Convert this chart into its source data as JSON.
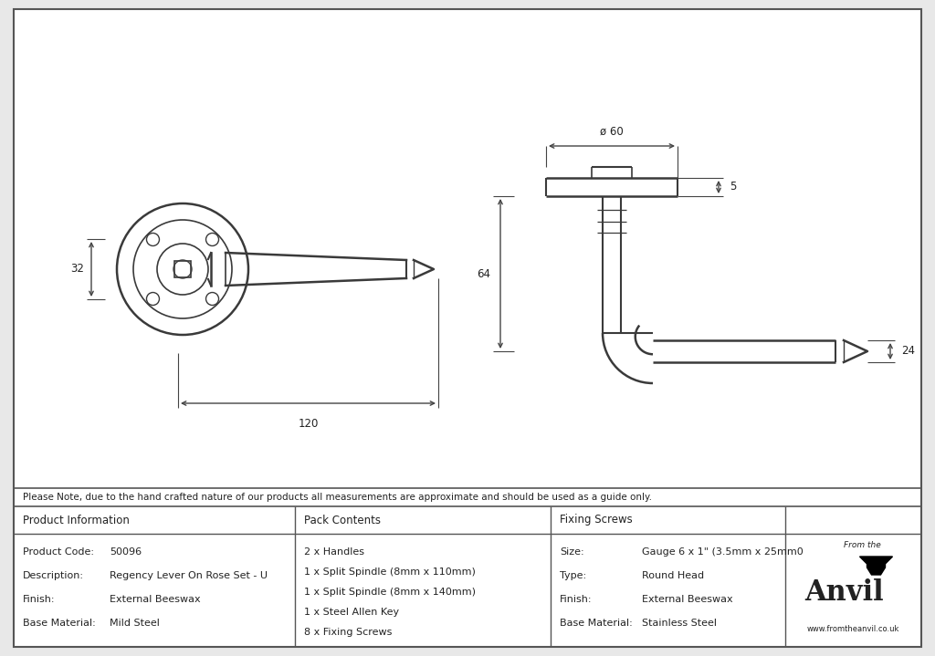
{
  "bg_color": "#e8e8e8",
  "drawing_bg": "#ffffff",
  "border_color": "#555555",
  "line_color": "#3a3a3a",
  "dim_color": "#444444",
  "text_color": "#222222",
  "note_text": "Please Note, due to the hand crafted nature of our products all measurements are approximate and should be used as a guide only.",
  "table": {
    "col1_header": "Product Information",
    "col2_header": "Pack Contents",
    "col3_header": "Fixing Screws",
    "col1_rows": [
      [
        "Product Code:",
        "50096"
      ],
      [
        "Description:",
        "Regency Lever On Rose Set - U"
      ],
      [
        "Finish:",
        "External Beeswax"
      ],
      [
        "Base Material:",
        "Mild Steel"
      ]
    ],
    "col2_rows": [
      "2 x Handles",
      "1 x Split Spindle (8mm x 110mm)",
      "1 x Split Spindle (8mm x 140mm)",
      "1 x Steel Allen Key",
      "8 x Fixing Screws"
    ],
    "col3_rows": [
      [
        "Size:",
        "Gauge 6 x 1\" (3.5mm x 25mm0"
      ],
      [
        "Type:",
        "Round Head"
      ],
      [
        "Finish:",
        "External Beeswax"
      ],
      [
        "Base Material:",
        "Stainless Steel"
      ]
    ]
  },
  "dim_32": "32",
  "dim_120": "120",
  "dim_60": "ø 60",
  "dim_5": "5",
  "dim_64": "64",
  "dim_24": "24"
}
